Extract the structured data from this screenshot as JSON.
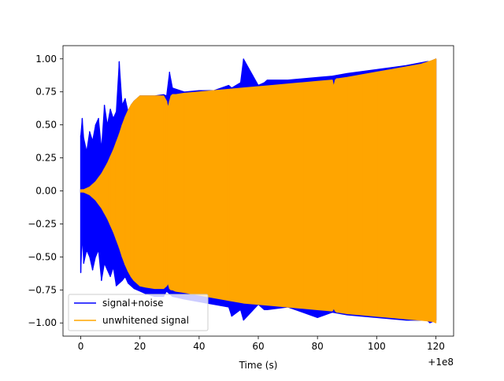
{
  "chart_data": {
    "type": "line",
    "title": "",
    "xlabel": "Time (s)",
    "ylabel": "",
    "x_offset_label": "+1e8",
    "xlim": [
      -6,
      126
    ],
    "ylim": [
      -1.1,
      1.1
    ],
    "x_ticks": [
      0,
      20,
      40,
      60,
      80,
      100,
      120
    ],
    "x_tick_labels": [
      "0",
      "20",
      "40",
      "60",
      "80",
      "100",
      "120"
    ],
    "y_ticks": [
      -1.0,
      -0.75,
      -0.5,
      -0.25,
      0.0,
      0.25,
      0.5,
      0.75,
      1.0
    ],
    "y_tick_labels": [
      "−1.00",
      "−0.75",
      "−0.50",
      "−0.25",
      "0.00",
      "0.25",
      "0.50",
      "0.75",
      "1.00"
    ],
    "grid": false,
    "legend_position": "lower-left",
    "series": [
      {
        "name": "signal+noise",
        "color": "#0000ff",
        "envelope_x": [
          0,
          0.5,
          1,
          2,
          3,
          4,
          5,
          6,
          7,
          8,
          9,
          10,
          11,
          12,
          13,
          14,
          15,
          16,
          17,
          18,
          19,
          20,
          22,
          25,
          28,
          29,
          30,
          31,
          35,
          40,
          45,
          50,
          51,
          54,
          55,
          60,
          62,
          63,
          70,
          80,
          85,
          90,
          100,
          110,
          117,
          118,
          120
        ],
        "envelope_upper": [
          0.42,
          0.55,
          0.4,
          0.3,
          0.45,
          0.38,
          0.5,
          0.55,
          0.32,
          0.65,
          0.5,
          0.62,
          0.55,
          0.6,
          0.98,
          0.65,
          0.7,
          0.6,
          0.65,
          0.68,
          0.7,
          0.72,
          0.72,
          0.72,
          0.73,
          0.72,
          0.9,
          0.78,
          0.75,
          0.76,
          0.76,
          0.8,
          0.78,
          0.82,
          1.0,
          0.8,
          0.82,
          0.84,
          0.84,
          0.86,
          0.87,
          0.89,
          0.92,
          0.95,
          0.98,
          0.98,
          1.0
        ],
        "envelope_lower": [
          -0.62,
          -0.35,
          -0.55,
          -0.45,
          -0.5,
          -0.6,
          -0.5,
          -0.45,
          -0.68,
          -0.55,
          -0.6,
          -0.65,
          -0.58,
          -0.72,
          -0.7,
          -0.68,
          -0.65,
          -0.7,
          -0.72,
          -0.74,
          -0.75,
          -0.76,
          -0.78,
          -0.8,
          -0.8,
          -0.76,
          -0.78,
          -0.8,
          -0.82,
          -0.84,
          -0.86,
          -0.88,
          -0.95,
          -0.9,
          -0.98,
          -0.86,
          -0.9,
          -0.9,
          -0.88,
          -0.96,
          -0.92,
          -0.94,
          -0.96,
          -0.98,
          -0.98,
          -1.0,
          -0.98
        ]
      },
      {
        "name": "unwhitened signal",
        "color": "#ffa500",
        "envelope_x": [
          0,
          1,
          2,
          3,
          4,
          5,
          6,
          7,
          8,
          9,
          10,
          11,
          12,
          13,
          14,
          15,
          16,
          17,
          18,
          19,
          20,
          22,
          25,
          28,
          29,
          29.5,
          30,
          30.5,
          31,
          32,
          35,
          40,
          45,
          50,
          55,
          60,
          65,
          70,
          75,
          80,
          85,
          85.5,
          86,
          86.5,
          87,
          90,
          95,
          100,
          105,
          110,
          115,
          119,
          120
        ],
        "envelope_upper": [
          0.01,
          0.01,
          0.02,
          0.03,
          0.05,
          0.07,
          0.1,
          0.13,
          0.17,
          0.21,
          0.26,
          0.31,
          0.37,
          0.43,
          0.5,
          0.56,
          0.61,
          0.65,
          0.68,
          0.7,
          0.72,
          0.72,
          0.72,
          0.72,
          0.68,
          0.63,
          0.68,
          0.72,
          0.73,
          0.73,
          0.74,
          0.75,
          0.76,
          0.77,
          0.78,
          0.79,
          0.8,
          0.81,
          0.82,
          0.83,
          0.84,
          0.79,
          0.84,
          0.85,
          0.85,
          0.86,
          0.88,
          0.9,
          0.92,
          0.94,
          0.96,
          0.99,
          1.0
        ],
        "envelope_lower": [
          -0.01,
          -0.01,
          -0.02,
          -0.03,
          -0.05,
          -0.07,
          -0.1,
          -0.13,
          -0.17,
          -0.21,
          -0.26,
          -0.31,
          -0.37,
          -0.43,
          -0.5,
          -0.56,
          -0.61,
          -0.65,
          -0.68,
          -0.7,
          -0.72,
          -0.73,
          -0.74,
          -0.74,
          -0.72,
          -0.7,
          -0.74,
          -0.75,
          -0.75,
          -0.76,
          -0.77,
          -0.79,
          -0.81,
          -0.83,
          -0.85,
          -0.86,
          -0.87,
          -0.88,
          -0.89,
          -0.9,
          -0.91,
          -0.89,
          -0.91,
          -0.92,
          -0.92,
          -0.93,
          -0.94,
          -0.95,
          -0.96,
          -0.97,
          -0.98,
          -0.99,
          -1.0
        ]
      }
    ]
  }
}
